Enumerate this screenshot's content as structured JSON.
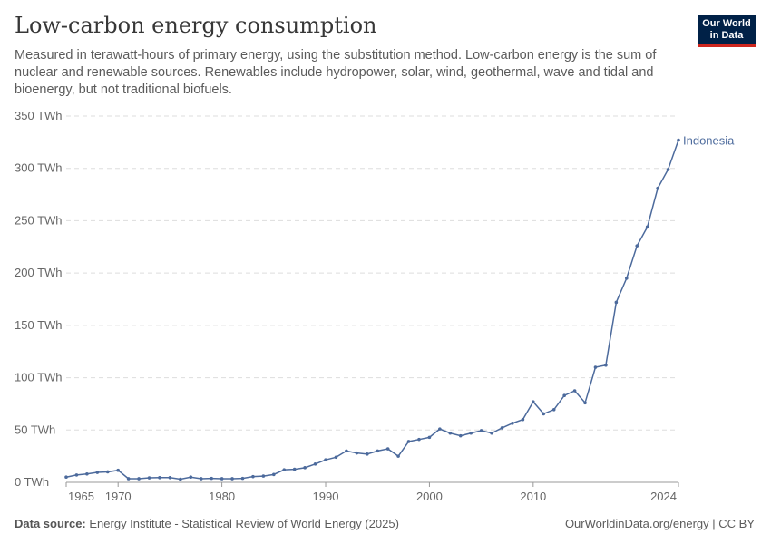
{
  "header": {
    "title": "Low-carbon energy consumption",
    "subtitle": "Measured in terawatt-hours of primary energy, using the substitution method. Low-carbon energy is the sum of nuclear and renewable sources. Renewables include hydropower, solar, wind, geothermal, wave and tidal and bioenergy, but not traditional biofuels.",
    "logo": "Our World in Data"
  },
  "footer": {
    "source_label": "Data source:",
    "source": "Energy Institute - Statistical Review of World Energy (2025)",
    "credit": "OurWorldinData.org/energy | CC BY"
  },
  "chart_data": {
    "type": "line",
    "title": "Low-carbon energy consumption",
    "ylabel": "TWh",
    "xlabel": "",
    "ylim": [
      0,
      350
    ],
    "xlim": [
      1965,
      2024
    ],
    "yticks": [
      0,
      50,
      100,
      150,
      200,
      250,
      300,
      350
    ],
    "ytick_labels": [
      "0 TWh",
      "50 TWh",
      "100 TWh",
      "150 TWh",
      "200 TWh",
      "250 TWh",
      "300 TWh",
      "350 TWh"
    ],
    "xticks": [
      1965,
      1970,
      1980,
      1990,
      2000,
      2010,
      2024
    ],
    "grid": "horizontal dashed",
    "color": "#4c6a9c",
    "series": [
      {
        "name": "Indonesia",
        "x": [
          1965,
          1966,
          1967,
          1968,
          1969,
          1970,
          1971,
          1972,
          1973,
          1974,
          1975,
          1976,
          1977,
          1978,
          1979,
          1980,
          1981,
          1982,
          1983,
          1984,
          1985,
          1986,
          1987,
          1988,
          1989,
          1990,
          1991,
          1992,
          1993,
          1994,
          1995,
          1996,
          1997,
          1998,
          1999,
          2000,
          2001,
          2002,
          2003,
          2004,
          2005,
          2006,
          2007,
          2008,
          2009,
          2010,
          2011,
          2012,
          2013,
          2014,
          2015,
          2016,
          2017,
          2018,
          2019,
          2020,
          2021,
          2022,
          2023,
          2024
        ],
        "values": [
          5,
          7,
          8,
          9.5,
          10,
          11.5,
          3.5,
          3.5,
          4.3,
          4.5,
          4.5,
          3,
          5,
          3.5,
          3.8,
          3.5,
          3.5,
          3.8,
          5.5,
          6,
          7.5,
          12,
          12.5,
          14,
          17.5,
          21.5,
          24,
          30,
          28,
          27,
          30,
          32,
          25,
          39,
          41,
          43,
          51,
          47,
          44.5,
          47,
          49.5,
          47,
          52,
          56.5,
          60,
          77,
          65.5,
          69.5,
          83,
          87.5,
          76,
          110,
          112,
          172,
          195,
          226,
          244,
          281,
          299,
          327
        ]
      }
    ]
  }
}
